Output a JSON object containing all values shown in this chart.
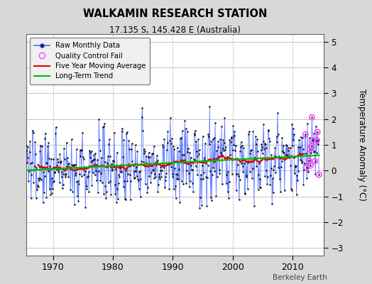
{
  "title": "WALKAMIN RESEARCH STATION",
  "subtitle": "17.135 S, 145.428 E (Australia)",
  "ylabel": "Temperature Anomaly (°C)",
  "credit": "Berkeley Earth",
  "year_start": 1965.0,
  "year_end": 2014.5,
  "xlim_left": 1965.5,
  "xlim_right": 2015.2,
  "ylim": [
    -3.3,
    5.3
  ],
  "yticks": [
    -3,
    -2,
    -1,
    0,
    1,
    2,
    3,
    4,
    5
  ],
  "xticks": [
    1970,
    1980,
    1990,
    2000,
    2010
  ],
  "background_color": "#d8d8d8",
  "plot_bg_color": "#ffffff",
  "raw_line_color": "#4466ff",
  "raw_marker_color": "#111111",
  "moving_avg_color": "#dd0000",
  "trend_color": "#00bb00",
  "qc_fail_color": "#ff44ff",
  "seed": 137,
  "noise_std": 0.75,
  "trend_slope": 0.012,
  "ma_window": 60,
  "n_qc_fails": 12,
  "qc_recent_months": 30
}
